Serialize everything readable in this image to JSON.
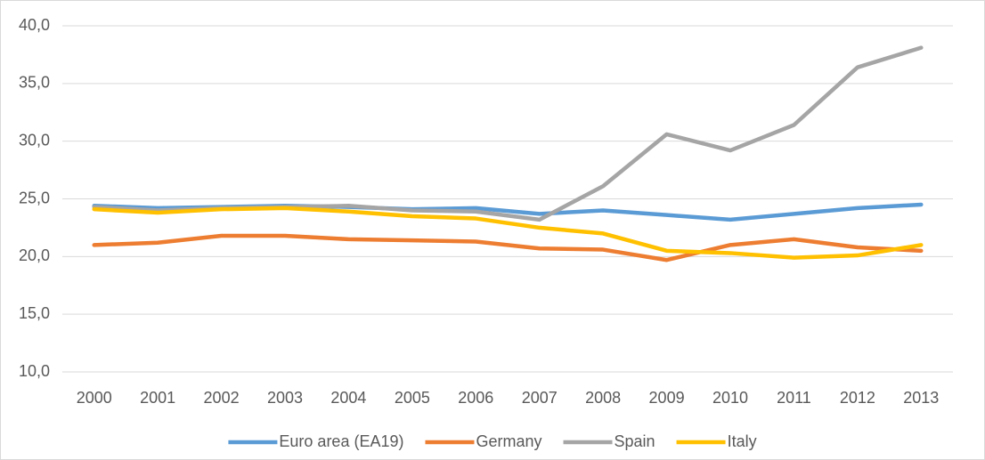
{
  "chart_data": {
    "type": "line",
    "categories": [
      "2000",
      "2001",
      "2002",
      "2003",
      "2004",
      "2005",
      "2006",
      "2007",
      "2008",
      "2009",
      "2010",
      "2011",
      "2012",
      "2013"
    ],
    "series": [
      {
        "name": "Euro area (EA19)",
        "color": "#5b9bd5",
        "values": [
          24.4,
          24.2,
          24.3,
          24.4,
          24.3,
          24.1,
          24.2,
          23.7,
          24.0,
          23.6,
          23.2,
          23.7,
          24.2,
          24.5
        ]
      },
      {
        "name": "Germany",
        "color": "#ed7d31",
        "values": [
          21.0,
          21.2,
          21.8,
          21.8,
          21.5,
          21.4,
          21.3,
          20.7,
          20.6,
          19.7,
          21.0,
          21.5,
          20.8,
          20.5
        ]
      },
      {
        "name": "Spain",
        "color": "#a5a5a5",
        "values": [
          24.3,
          24.0,
          24.2,
          24.3,
          24.4,
          24.0,
          23.9,
          23.2,
          26.1,
          30.6,
          29.2,
          31.4,
          36.4,
          38.1
        ]
      },
      {
        "name": "Italy",
        "color": "#ffc000",
        "values": [
          24.1,
          23.8,
          24.1,
          24.2,
          23.9,
          23.5,
          23.3,
          22.5,
          22.0,
          20.5,
          20.3,
          19.9,
          20.1,
          21.0
        ]
      }
    ],
    "ylim": [
      10,
      40
    ],
    "yticks": [
      {
        "value": 10,
        "label": "10,0"
      },
      {
        "value": 15,
        "label": "15,0"
      },
      {
        "value": 20,
        "label": "20,0"
      },
      {
        "value": 25,
        "label": "25,0"
      },
      {
        "value": 30,
        "label": "30,0"
      },
      {
        "value": 35,
        "label": "35,0"
      },
      {
        "value": 40,
        "label": "40,0"
      }
    ],
    "grid": true,
    "legend": "bottom"
  }
}
